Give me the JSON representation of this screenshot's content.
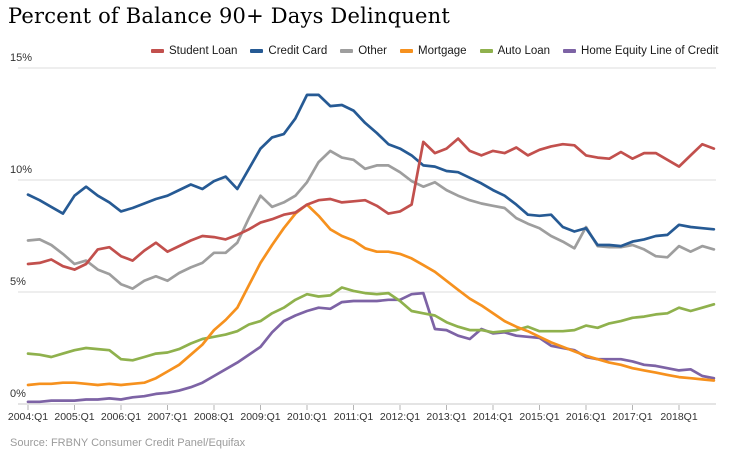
{
  "title": "Percent of Balance 90+ Days Delinquent",
  "source": "Source: FRBNY Consumer Credit Panel/Equifax",
  "chart_data": {
    "type": "line",
    "title": "Percent of Balance 90+ Days Delinquent",
    "xlabel": "",
    "ylabel": "Percent",
    "ylim": [
      0,
      15
    ],
    "grid": "horizontal",
    "legend_position": "top",
    "y_tick_labels": [
      "15%",
      "10%",
      "5%",
      "0%"
    ],
    "y_tick_values": [
      15,
      10,
      5,
      0
    ],
    "x_tick_labels": [
      "2004:Q1",
      "2005:Q1",
      "2006:Q1",
      "2007:Q1",
      "2008:Q1",
      "2009:Q1",
      "2010:Q1",
      "2011:Q1",
      "2012:Q1",
      "2013:Q1",
      "2014:Q1",
      "2015:Q1",
      "2016:Q1",
      "2017:Q1",
      "2018Q1"
    ],
    "x_range_quarters": [
      "2004:Q1",
      "2018:Q4"
    ],
    "points_per_series": 60,
    "series": [
      {
        "name": "Student Loan",
        "color": "#c2504d",
        "values": [
          6.25,
          6.3,
          6.45,
          6.15,
          6.0,
          6.25,
          6.9,
          7.0,
          6.6,
          6.4,
          6.85,
          7.2,
          6.8,
          7.05,
          7.3,
          7.5,
          7.45,
          7.35,
          7.55,
          7.8,
          8.1,
          8.25,
          8.45,
          8.55,
          8.9,
          9.1,
          9.15,
          9.0,
          9.05,
          9.1,
          8.85,
          8.5,
          8.6,
          8.9,
          11.7,
          11.2,
          11.4,
          11.85,
          11.3,
          11.1,
          11.3,
          11.2,
          11.45,
          11.1,
          11.35,
          11.5,
          11.6,
          11.55,
          11.1,
          11.0,
          10.95,
          11.25,
          10.95,
          11.2,
          11.2,
          10.9,
          10.6,
          11.1,
          11.6,
          11.4
        ]
      },
      {
        "name": "Credit Card",
        "color": "#265a94",
        "values": [
          9.35,
          9.1,
          8.8,
          8.5,
          9.3,
          9.7,
          9.3,
          9.0,
          8.6,
          8.75,
          8.95,
          9.15,
          9.3,
          9.55,
          9.8,
          9.6,
          9.95,
          10.15,
          9.6,
          10.5,
          11.4,
          11.9,
          12.05,
          12.75,
          13.8,
          13.8,
          13.3,
          13.35,
          13.1,
          12.55,
          12.1,
          11.6,
          11.4,
          11.1,
          10.65,
          10.6,
          10.4,
          10.35,
          10.1,
          9.85,
          9.55,
          9.3,
          8.9,
          8.45,
          8.4,
          8.45,
          7.9,
          7.7,
          7.85,
          7.1,
          7.1,
          7.05,
          7.25,
          7.35,
          7.5,
          7.55,
          8.0,
          7.9,
          7.85,
          7.8
        ]
      },
      {
        "name": "Other",
        "color": "#9e9e9e",
        "values": [
          7.3,
          7.35,
          7.1,
          6.7,
          6.25,
          6.4,
          6.0,
          5.8,
          5.35,
          5.15,
          5.5,
          5.7,
          5.5,
          5.85,
          6.1,
          6.3,
          6.75,
          6.75,
          7.2,
          8.3,
          9.3,
          8.8,
          9.0,
          9.3,
          9.9,
          10.8,
          11.3,
          11.0,
          10.9,
          10.5,
          10.65,
          10.65,
          10.35,
          9.95,
          9.7,
          9.9,
          9.55,
          9.3,
          9.1,
          8.95,
          8.85,
          8.75,
          8.3,
          8.05,
          7.85,
          7.5,
          7.25,
          6.95,
          7.9,
          7.05,
          7.0,
          7.0,
          7.1,
          6.9,
          6.6,
          6.55,
          7.05,
          6.8,
          7.05,
          6.9
        ]
      },
      {
        "name": "Mortgage",
        "color": "#f6911e",
        "values": [
          0.85,
          0.9,
          0.9,
          0.95,
          0.95,
          0.9,
          0.85,
          0.9,
          0.85,
          0.9,
          0.95,
          1.15,
          1.45,
          1.75,
          2.2,
          2.65,
          3.3,
          3.75,
          4.3,
          5.3,
          6.3,
          7.1,
          7.85,
          8.5,
          8.9,
          8.4,
          7.8,
          7.5,
          7.3,
          6.95,
          6.8,
          6.8,
          6.7,
          6.5,
          6.2,
          5.9,
          5.5,
          5.1,
          4.7,
          4.4,
          4.05,
          3.7,
          3.45,
          3.25,
          3.0,
          2.75,
          2.55,
          2.35,
          2.15,
          2.0,
          1.85,
          1.75,
          1.6,
          1.5,
          1.4,
          1.3,
          1.2,
          1.15,
          1.1,
          1.05
        ]
      },
      {
        "name": "Auto Loan",
        "color": "#8fb14d",
        "values": [
          2.25,
          2.2,
          2.1,
          2.25,
          2.4,
          2.5,
          2.45,
          2.4,
          2.0,
          1.95,
          2.1,
          2.25,
          2.3,
          2.45,
          2.7,
          2.9,
          3.0,
          3.1,
          3.25,
          3.55,
          3.7,
          4.05,
          4.3,
          4.65,
          4.9,
          4.8,
          4.85,
          5.2,
          5.05,
          4.95,
          4.9,
          4.95,
          4.6,
          4.15,
          4.05,
          3.95,
          3.65,
          3.45,
          3.3,
          3.3,
          3.2,
          3.25,
          3.3,
          3.45,
          3.25,
          3.25,
          3.25,
          3.3,
          3.5,
          3.4,
          3.6,
          3.7,
          3.85,
          3.9,
          4.0,
          4.05,
          4.3,
          4.15,
          4.3,
          4.45
        ]
      },
      {
        "name": "Home Equity Line of Credit",
        "color": "#7d63a5",
        "values": [
          0.1,
          0.1,
          0.15,
          0.15,
          0.15,
          0.2,
          0.2,
          0.25,
          0.2,
          0.3,
          0.35,
          0.45,
          0.5,
          0.6,
          0.75,
          0.95,
          1.25,
          1.55,
          1.85,
          2.2,
          2.55,
          3.2,
          3.7,
          3.95,
          4.15,
          4.3,
          4.25,
          4.55,
          4.6,
          4.6,
          4.6,
          4.65,
          4.65,
          4.9,
          4.95,
          3.35,
          3.3,
          3.05,
          2.9,
          3.35,
          3.15,
          3.2,
          3.05,
          3.0,
          2.95,
          2.6,
          2.5,
          2.4,
          2.1,
          2.0,
          2.0,
          2.0,
          1.9,
          1.75,
          1.7,
          1.6,
          1.5,
          1.55,
          1.25,
          1.15
        ]
      }
    ],
    "colors": {
      "grid": "#dcdcdc",
      "axis": "#c8c8c8",
      "tick": "#b4b4b4"
    }
  }
}
